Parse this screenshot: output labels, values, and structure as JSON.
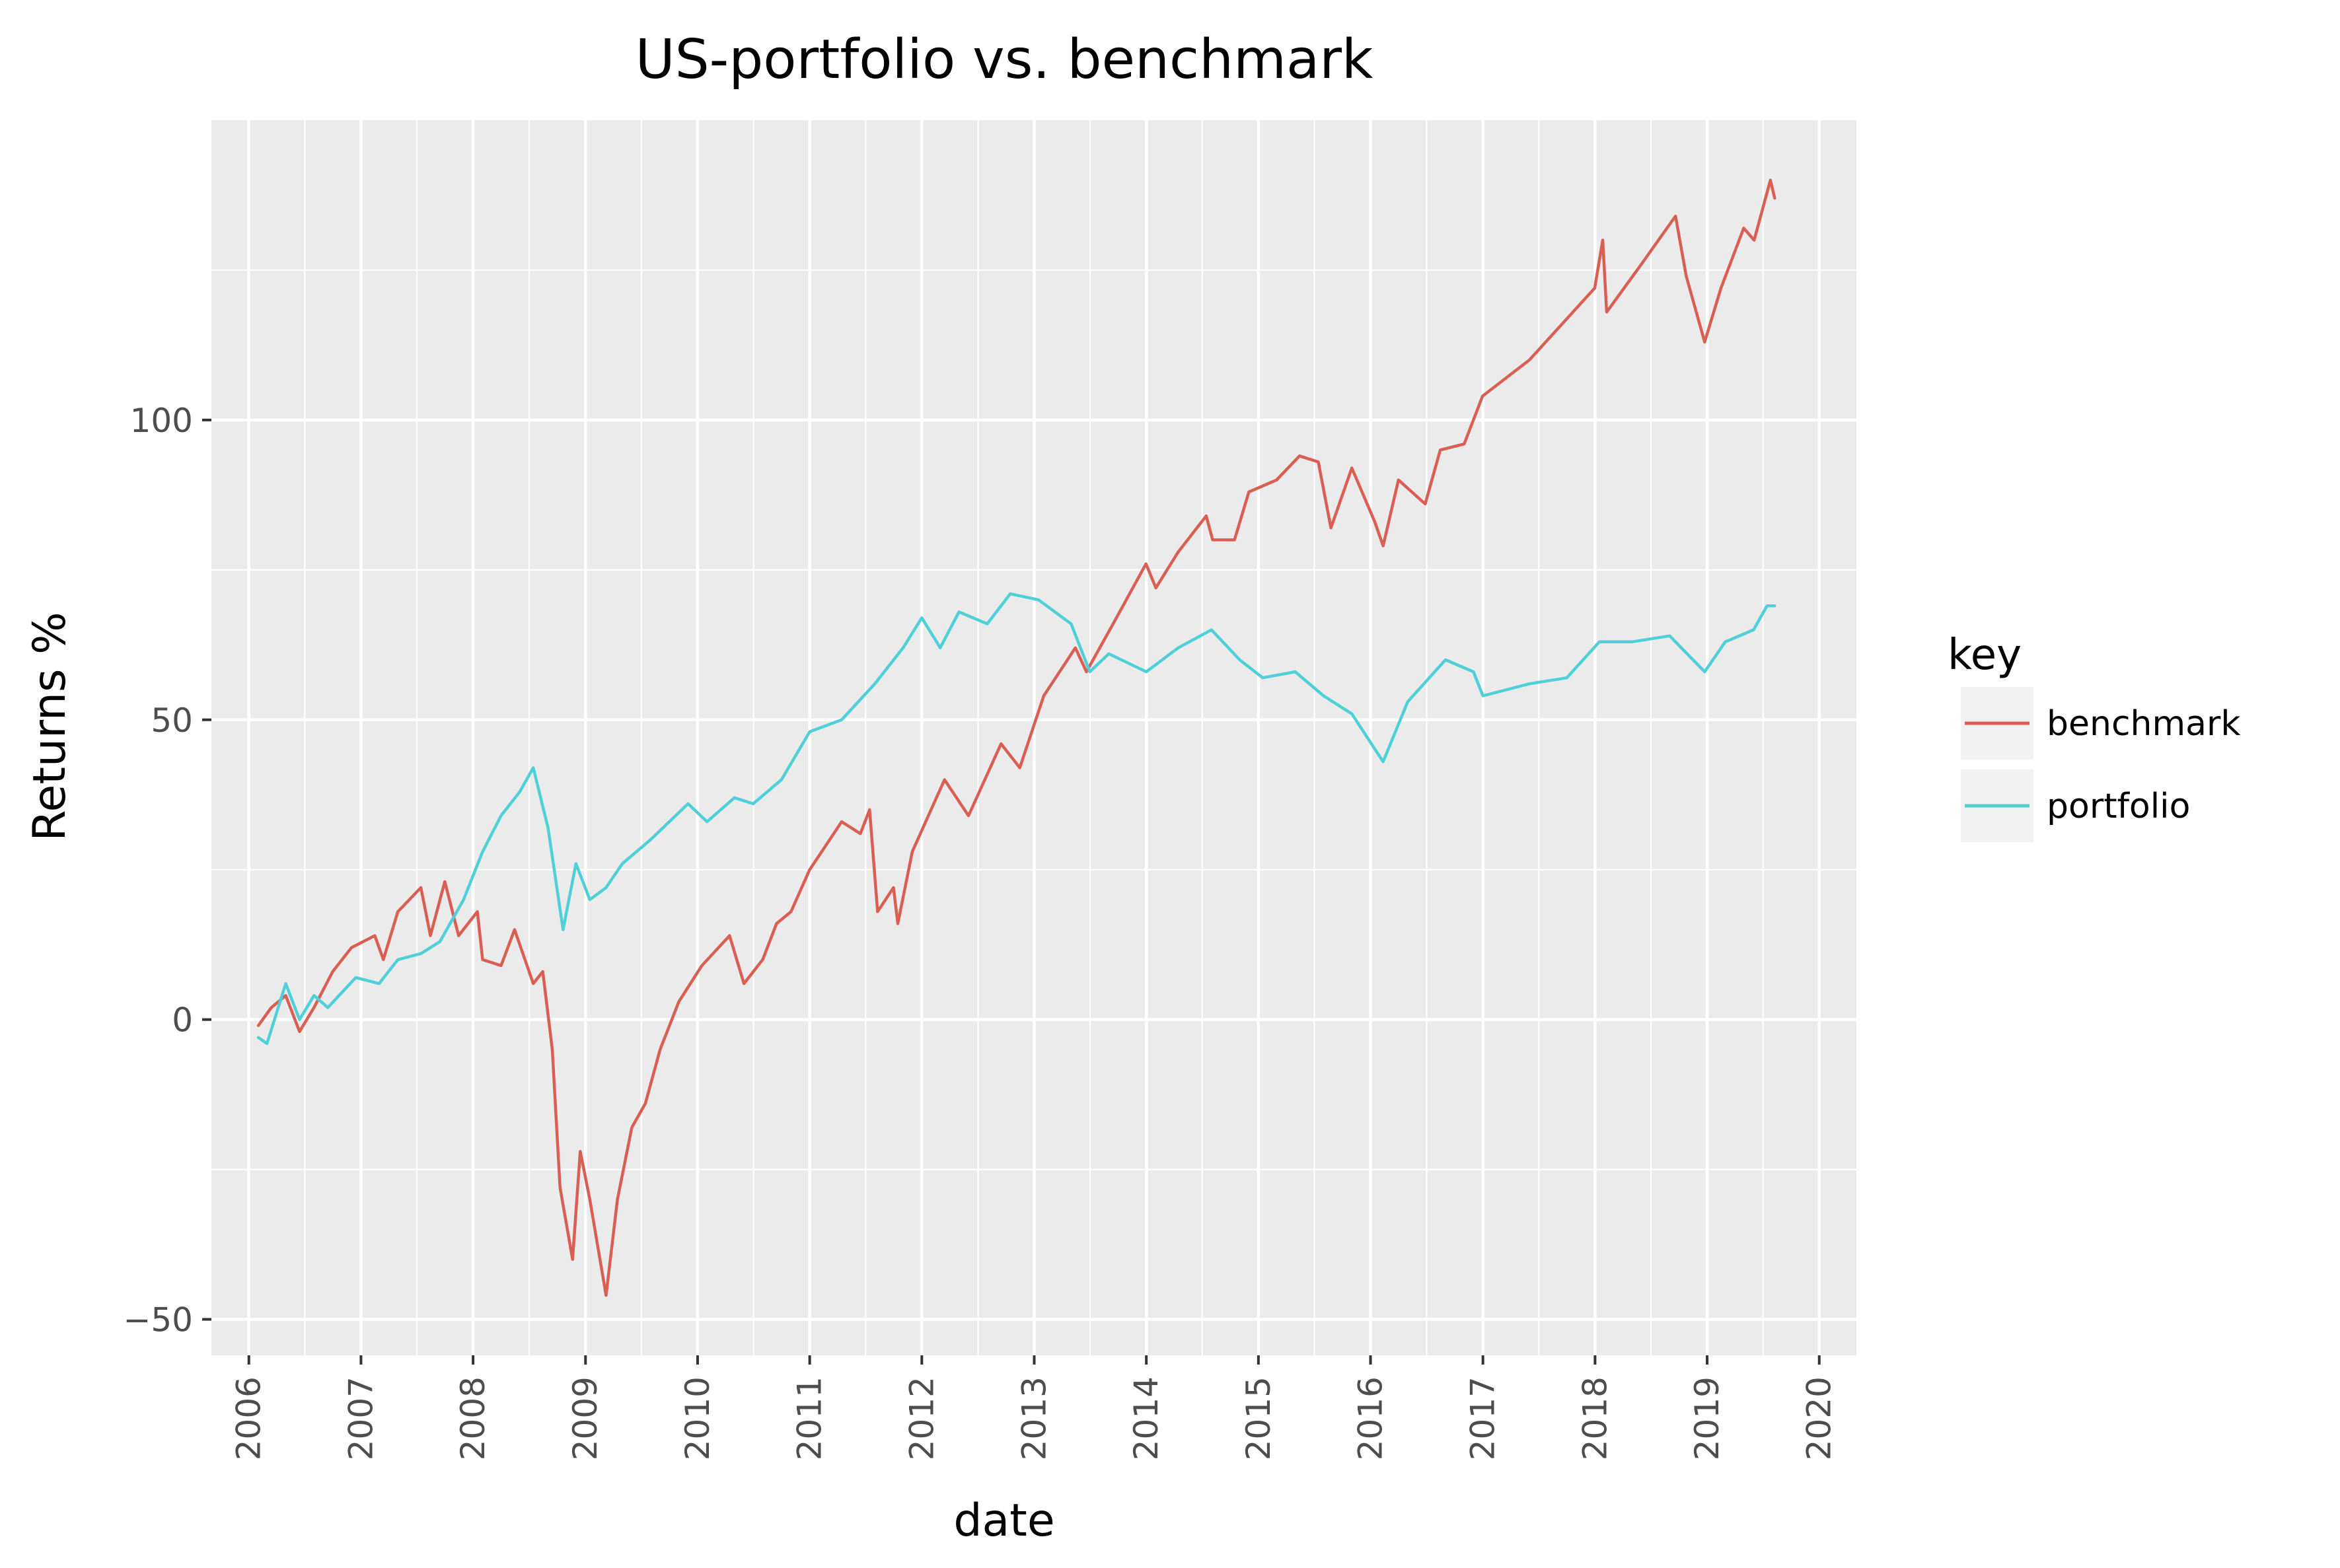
{
  "chart_data": {
    "type": "line",
    "title": "US-portfolio vs. benchmark",
    "xlabel": "date",
    "ylabel": "Returns %",
    "xlim": [
      "2005-09-01",
      "2020-05-01"
    ],
    "ylim": [
      -56,
      150
    ],
    "x_ticks": [
      "2006",
      "2007",
      "2008",
      "2009",
      "2010",
      "2011",
      "2012",
      "2013",
      "2014",
      "2015",
      "2016",
      "2017",
      "2018",
      "2019",
      "2020"
    ],
    "y_ticks": [
      -50,
      0,
      50,
      100
    ],
    "grid": true,
    "legend": {
      "title": "key",
      "position": "right",
      "entries": [
        "benchmark",
        "portfolio"
      ]
    },
    "colors": {
      "benchmark": "#d95f52",
      "portfolio": "#4fcfd8",
      "panel": "#ebebeb",
      "grid": "#ffffff"
    },
    "series": [
      {
        "name": "benchmark",
        "points": [
          [
            "2006-02-01",
            -1
          ],
          [
            "2006-03-15",
            2
          ],
          [
            "2006-05-01",
            4
          ],
          [
            "2006-06-15",
            -2
          ],
          [
            "2006-08-01",
            2
          ],
          [
            "2006-10-01",
            8
          ],
          [
            "2006-12-01",
            12
          ],
          [
            "2007-02-15",
            14
          ],
          [
            "2007-03-15",
            10
          ],
          [
            "2007-05-01",
            18
          ],
          [
            "2007-07-15",
            22
          ],
          [
            "2007-08-15",
            14
          ],
          [
            "2007-10-01",
            23
          ],
          [
            "2007-11-15",
            14
          ],
          [
            "2008-01-15",
            18
          ],
          [
            "2008-02-01",
            10
          ],
          [
            "2008-04-01",
            9
          ],
          [
            "2008-05-15",
            15
          ],
          [
            "2008-07-15",
            6
          ],
          [
            "2008-08-15",
            8
          ],
          [
            "2008-09-15",
            -5
          ],
          [
            "2008-10-10",
            -28
          ],
          [
            "2008-11-20",
            -40
          ],
          [
            "2008-12-15",
            -22
          ],
          [
            "2009-01-15",
            -30
          ],
          [
            "2009-03-09",
            -46
          ],
          [
            "2009-04-15",
            -30
          ],
          [
            "2009-06-01",
            -18
          ],
          [
            "2009-07-15",
            -14
          ],
          [
            "2009-09-01",
            -5
          ],
          [
            "2009-11-01",
            3
          ],
          [
            "2010-01-15",
            9
          ],
          [
            "2010-04-15",
            14
          ],
          [
            "2010-06-01",
            6
          ],
          [
            "2010-08-01",
            10
          ],
          [
            "2010-09-15",
            16
          ],
          [
            "2010-11-01",
            18
          ],
          [
            "2011-01-01",
            25
          ],
          [
            "2011-04-15",
            33
          ],
          [
            "2011-06-15",
            31
          ],
          [
            "2011-07-15",
            35
          ],
          [
            "2011-08-10",
            18
          ],
          [
            "2011-10-01",
            22
          ],
          [
            "2011-10-15",
            16
          ],
          [
            "2011-12-01",
            28
          ],
          [
            "2012-03-15",
            40
          ],
          [
            "2012-06-01",
            34
          ],
          [
            "2012-09-15",
            46
          ],
          [
            "2012-11-15",
            42
          ],
          [
            "2013-02-01",
            54
          ],
          [
            "2013-05-15",
            62
          ],
          [
            "2013-06-20",
            58
          ],
          [
            "2013-09-15",
            66
          ],
          [
            "2013-12-31",
            76
          ],
          [
            "2014-02-01",
            72
          ],
          [
            "2014-04-15",
            78
          ],
          [
            "2014-07-15",
            84
          ],
          [
            "2014-08-05",
            80
          ],
          [
            "2014-10-15",
            80
          ],
          [
            "2014-12-01",
            88
          ],
          [
            "2015-03-01",
            90
          ],
          [
            "2015-05-15",
            94
          ],
          [
            "2015-07-15",
            93
          ],
          [
            "2015-08-25",
            82
          ],
          [
            "2015-11-01",
            92
          ],
          [
            "2016-01-15",
            83
          ],
          [
            "2016-02-11",
            79
          ],
          [
            "2016-04-01",
            90
          ],
          [
            "2016-06-27",
            86
          ],
          [
            "2016-08-15",
            95
          ],
          [
            "2016-11-01",
            96
          ],
          [
            "2016-12-31",
            104
          ],
          [
            "2017-06-01",
            110
          ],
          [
            "2017-12-31",
            122
          ],
          [
            "2018-01-26",
            130
          ],
          [
            "2018-02-08",
            118
          ],
          [
            "2018-06-01",
            126
          ],
          [
            "2018-09-20",
            134
          ],
          [
            "2018-10-25",
            124
          ],
          [
            "2018-12-24",
            113
          ],
          [
            "2019-02-15",
            122
          ],
          [
            "2019-04-30",
            132
          ],
          [
            "2019-06-03",
            130
          ],
          [
            "2019-07-26",
            140
          ],
          [
            "2019-08-09",
            137
          ]
        ]
      },
      {
        "name": "portfolio",
        "points": [
          [
            "2006-02-01",
            -3
          ],
          [
            "2006-03-01",
            -4
          ],
          [
            "2006-05-01",
            6
          ],
          [
            "2006-06-15",
            0
          ],
          [
            "2006-08-01",
            4
          ],
          [
            "2006-09-15",
            2
          ],
          [
            "2006-12-15",
            7
          ],
          [
            "2007-03-01",
            6
          ],
          [
            "2007-05-01",
            10
          ],
          [
            "2007-07-15",
            11
          ],
          [
            "2007-09-15",
            13
          ],
          [
            "2007-12-01",
            20
          ],
          [
            "2008-02-01",
            28
          ],
          [
            "2008-04-01",
            34
          ],
          [
            "2008-06-01",
            38
          ],
          [
            "2008-07-15",
            42
          ],
          [
            "2008-09-01",
            32
          ],
          [
            "2008-10-20",
            15
          ],
          [
            "2008-12-01",
            26
          ],
          [
            "2009-01-15",
            20
          ],
          [
            "2009-03-09",
            22
          ],
          [
            "2009-05-01",
            26
          ],
          [
            "2009-08-01",
            30
          ],
          [
            "2009-12-01",
            36
          ],
          [
            "2010-02-01",
            33
          ],
          [
            "2010-05-01",
            37
          ],
          [
            "2010-07-01",
            36
          ],
          [
            "2010-10-01",
            40
          ],
          [
            "2011-01-01",
            48
          ],
          [
            "2011-04-15",
            50
          ],
          [
            "2011-08-01",
            56
          ],
          [
            "2011-11-01",
            62
          ],
          [
            "2012-01-01",
            67
          ],
          [
            "2012-03-01",
            62
          ],
          [
            "2012-05-01",
            68
          ],
          [
            "2012-08-01",
            66
          ],
          [
            "2012-10-15",
            71
          ],
          [
            "2013-01-15",
            70
          ],
          [
            "2013-05-01",
            66
          ],
          [
            "2013-07-01",
            58
          ],
          [
            "2013-09-01",
            61
          ],
          [
            "2014-01-01",
            58
          ],
          [
            "2014-04-15",
            62
          ],
          [
            "2014-08-01",
            65
          ],
          [
            "2014-11-01",
            60
          ],
          [
            "2015-01-15",
            57
          ],
          [
            "2015-05-01",
            58
          ],
          [
            "2015-08-01",
            54
          ],
          [
            "2015-11-01",
            51
          ],
          [
            "2016-02-11",
            43
          ],
          [
            "2016-05-01",
            53
          ],
          [
            "2016-09-01",
            60
          ],
          [
            "2016-12-01",
            58
          ],
          [
            "2017-01-01",
            54
          ],
          [
            "2017-06-01",
            56
          ],
          [
            "2017-10-01",
            57
          ],
          [
            "2018-01-15",
            63
          ],
          [
            "2018-05-01",
            63
          ],
          [
            "2018-09-01",
            64
          ],
          [
            "2018-12-24",
            58
          ],
          [
            "2019-03-01",
            63
          ],
          [
            "2019-06-01",
            65
          ],
          [
            "2019-07-15",
            69
          ],
          [
            "2019-08-09",
            69
          ]
        ]
      }
    ]
  }
}
